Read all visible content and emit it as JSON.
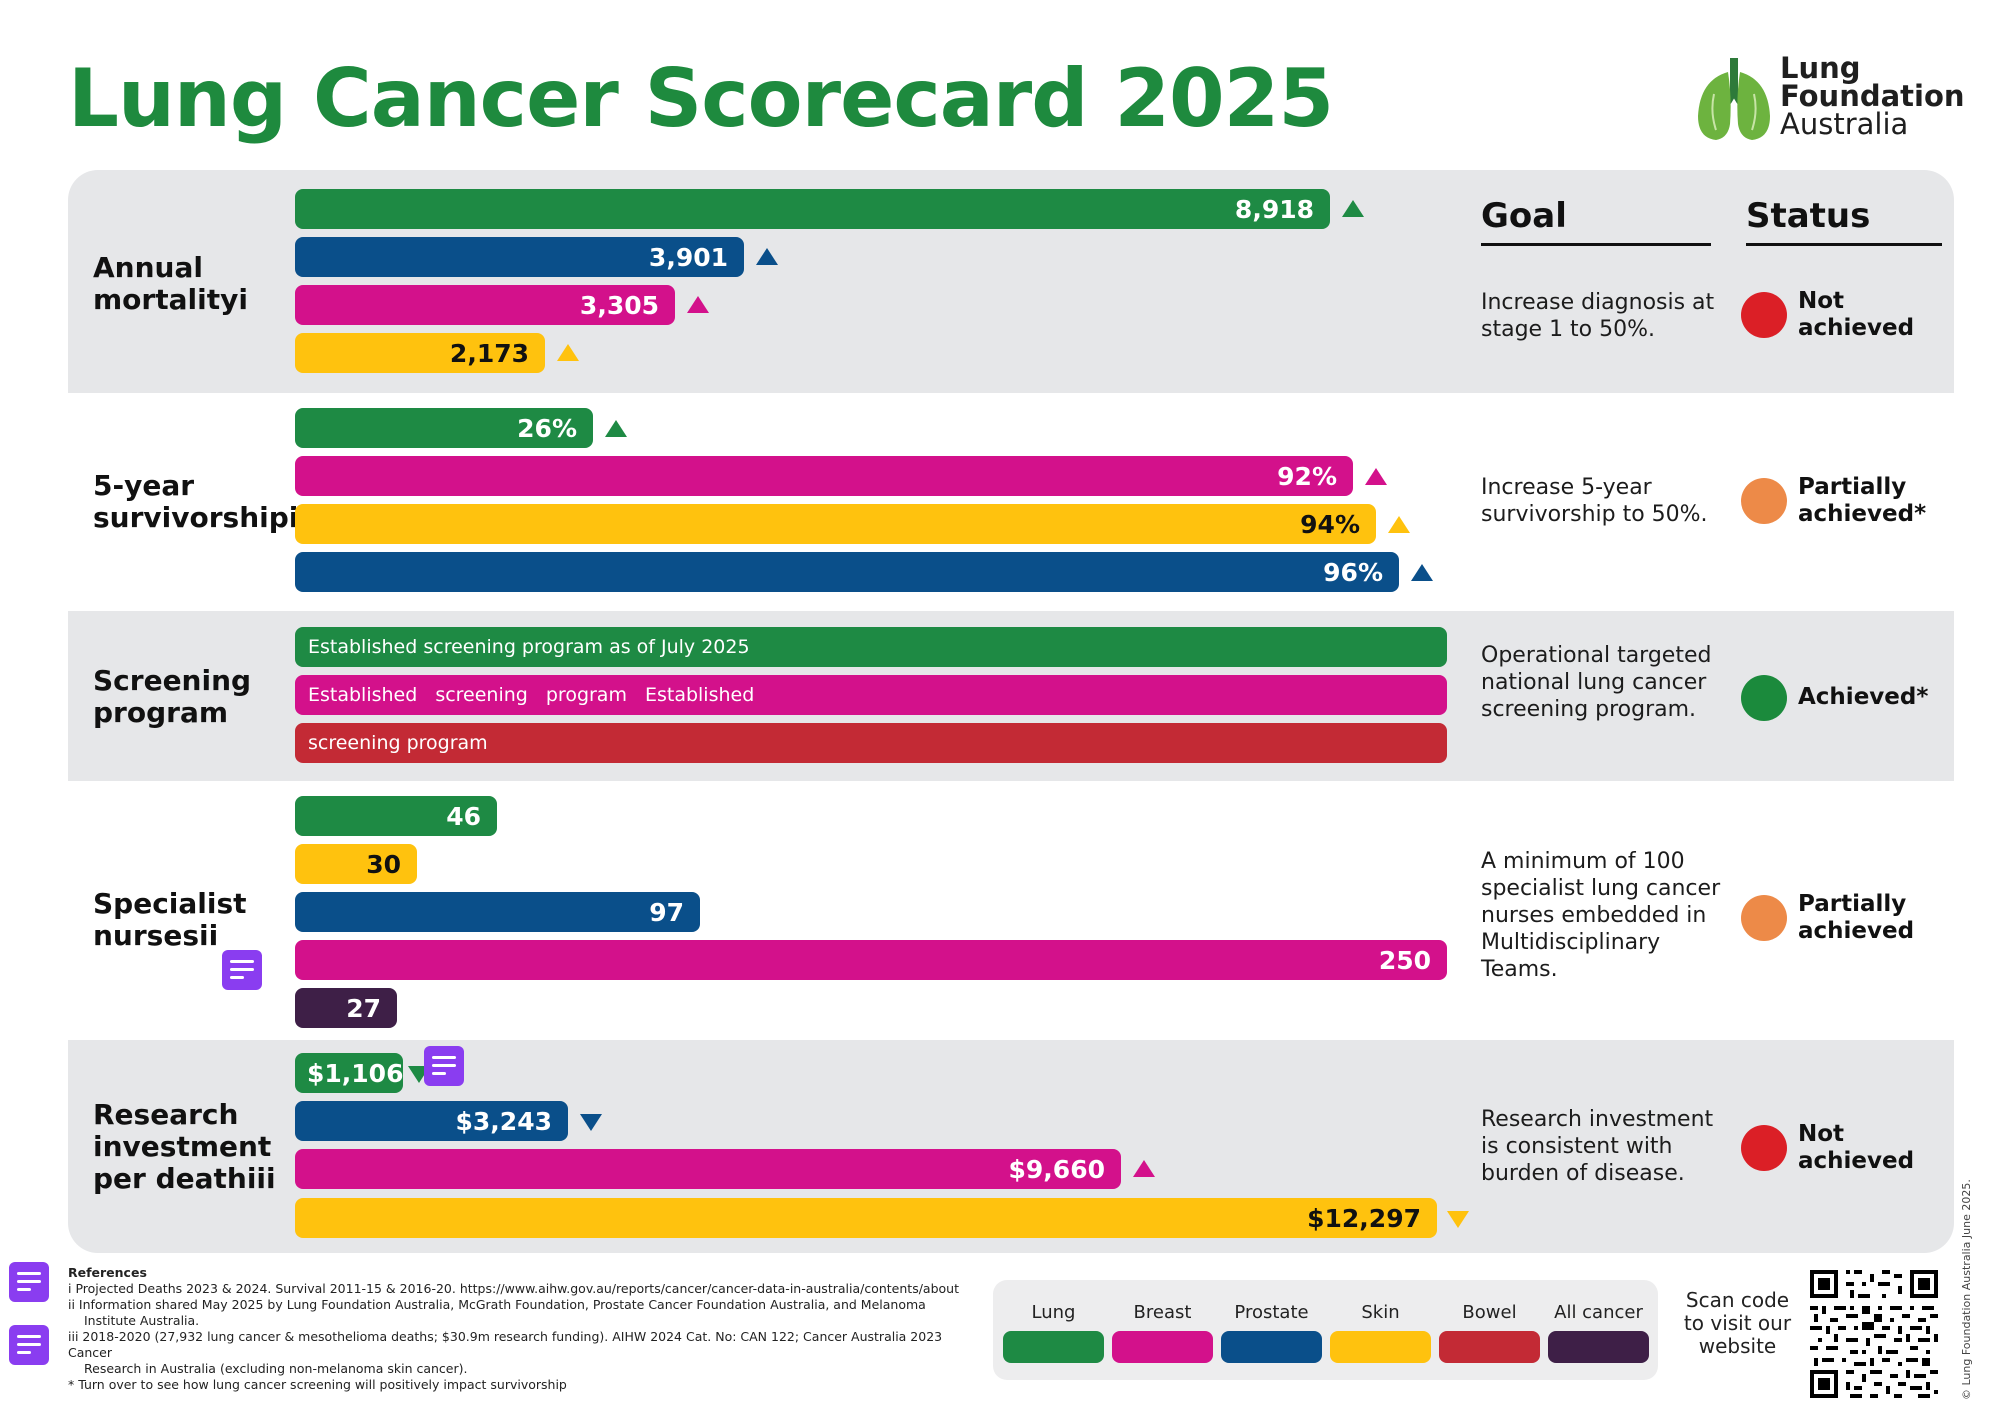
{
  "title": "Lung Cancer Scorecard 2025",
  "logo": {
    "line1": "Lung",
    "line2": "Foundation",
    "line3": "Australia"
  },
  "headers": {
    "goal": "Goal",
    "status": "Status"
  },
  "colors": {
    "lung": "#1e8a44",
    "breast": "#d3118b",
    "prostate": "#0a4f8a",
    "skin": "#ffc20e",
    "bowel": "#c32a35",
    "all_cancer": "#3e1f47",
    "status_red": "#db1f26",
    "status_orange": "#ed8a48",
    "status_green": "#1b8a3c"
  },
  "rows": [
    {
      "label": "Annual mortalityi",
      "label_lines": [
        "Annual",
        "mortalityi"
      ],
      "bars": [
        {
          "series": "Lung",
          "display": "8,918",
          "value": 8918,
          "trend": "up"
        },
        {
          "series": "Prostate",
          "display": "3,901",
          "value": 3901,
          "trend": "up"
        },
        {
          "series": "Breast",
          "display": "3,305",
          "value": 3305,
          "trend": "up"
        },
        {
          "series": "Skin",
          "display": "2,173",
          "value": 2173,
          "trend": "up"
        }
      ],
      "goal": "Increase diagnosis at stage 1 to 50%.",
      "status": "Not achieved",
      "status_lines": [
        "Not",
        "achieved"
      ],
      "status_color": "red"
    },
    {
      "label": "5-year survivorshipi",
      "label_lines": [
        "5-year",
        "survivorshipi"
      ],
      "bars": [
        {
          "series": "Lung",
          "display": "26%",
          "value": 26,
          "trend": "up"
        },
        {
          "series": "Breast",
          "display": "92%",
          "value": 92,
          "trend": "up"
        },
        {
          "series": "Skin",
          "display": "94%",
          "value": 94,
          "trend": "up"
        },
        {
          "series": "Prostate",
          "display": "96%",
          "value": 96,
          "trend": "up"
        }
      ],
      "goal": "Increase 5-year survivorship to 50%.",
      "status": "Partially achieved*",
      "status_lines": [
        "Partially",
        "achieved*"
      ],
      "status_color": "orange"
    },
    {
      "label": "Screening program",
      "label_lines": [
        "Screening",
        "program"
      ],
      "bars": [
        {
          "series": "Lung",
          "display": "Established screening program as of July 2025"
        },
        {
          "series": "Breast",
          "display": "Established screening program Established",
          "words": [
            "Established",
            "screening",
            "program",
            "Established"
          ]
        },
        {
          "series": "Bowel",
          "display": "screening program"
        }
      ],
      "goal": "Operational targeted national lung cancer screening program.",
      "status": "Achieved*",
      "status_lines": [
        "Achieved*"
      ],
      "status_color": "green"
    },
    {
      "label": "Specialist nursesii",
      "label_lines": [
        "Specialist",
        "nursesii"
      ],
      "bars": [
        {
          "series": "Lung",
          "display": "46",
          "value": 46
        },
        {
          "series": "Skin",
          "display": "30",
          "value": 30
        },
        {
          "series": "Prostate",
          "display": "97",
          "value": 97
        },
        {
          "series": "Breast",
          "display": "250",
          "value": 250
        },
        {
          "series": "All cancer",
          "display": "27",
          "value": 27
        }
      ],
      "goal": "A minimum of 100 specialist lung cancer nurses embedded in Multidisciplinary Teams.",
      "status": "Partially achieved",
      "status_lines": [
        "Partially",
        "achieved"
      ],
      "status_color": "orange"
    },
    {
      "label": "Research investment per deathiii",
      "label_lines": [
        "Research",
        "investment",
        "per deathiii"
      ],
      "bars": [
        {
          "series": "Lung",
          "display": "$1,106",
          "value": 1106,
          "trend": "down"
        },
        {
          "series": "Prostate",
          "display": "$3,243",
          "value": 3243,
          "trend": "down"
        },
        {
          "series": "Breast",
          "display": "$9,660",
          "value": 9660,
          "trend": "up"
        },
        {
          "series": "Skin",
          "display": "$12,297",
          "value": 12297,
          "trend": "down"
        }
      ],
      "goal": "Research investment is consistent with burden of disease.",
      "status": "Not achieved",
      "status_lines": [
        "Not",
        "achieved"
      ],
      "status_color": "red"
    }
  ],
  "references": {
    "heading": "References",
    "lines": [
      "i Projected Deaths 2023 & 2024. Survival 2011-15 & 2016-20. https://www.aihw.gov.au/reports/cancer/cancer-data-in-australia/contents/about",
      "ii Information shared May 2025 by Lung Foundation Australia, McGrath Foundation, Prostate Cancer Foundation Australia, and Melanoma",
      "Institute Australia.",
      "iii 2018-2020 (27,932 lung cancer & mesothelioma deaths; $30.9m research funding). AIHW 2024 Cat. No: CAN 122; Cancer Australia 2023 Cancer",
      "Research in Australia (excluding non-melanoma skin cancer).",
      "* Turn over to see how lung cancer screening will positively impact survivorship"
    ]
  },
  "legend": [
    {
      "label": "Lung",
      "color": "#1e8a44"
    },
    {
      "label": "Breast",
      "color": "#d3118b"
    },
    {
      "label": "Prostate",
      "color": "#0a4f8a"
    },
    {
      "label": "Skin",
      "color": "#ffc20e"
    },
    {
      "label": "Bowel",
      "color": "#c32a35"
    },
    {
      "label": "All cancer",
      "color": "#3e1f47"
    }
  ],
  "qr": {
    "caption": "Scan code to visit our website",
    "caption_lines": [
      "Scan code",
      "to visit our",
      "website"
    ]
  },
  "copyright": "© Lung Foundation Australia June 2025."
}
